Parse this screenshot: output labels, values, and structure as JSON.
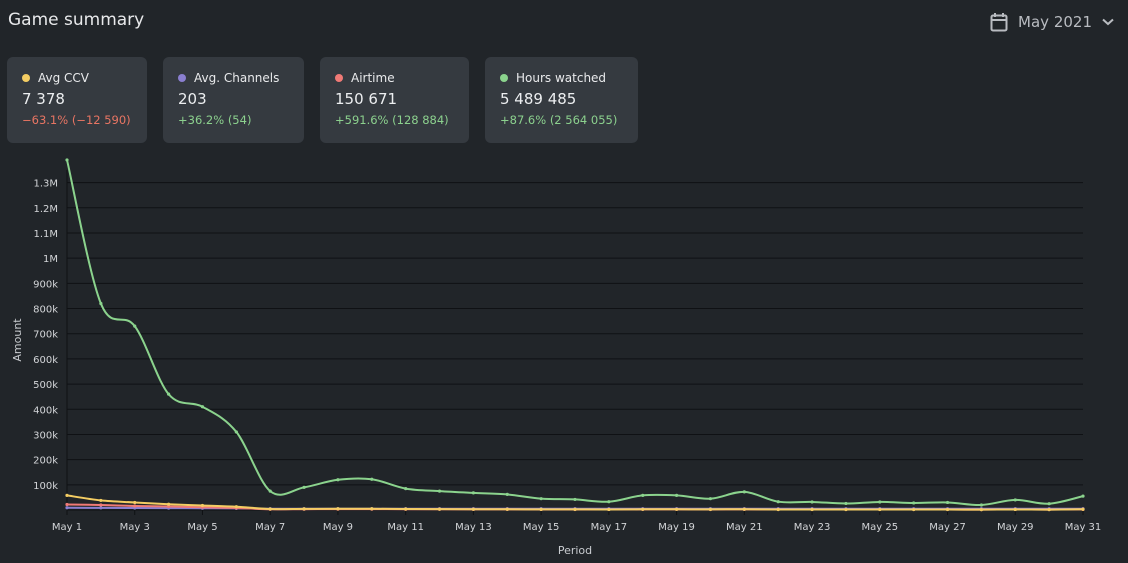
{
  "header": {
    "title": "Game summary",
    "period_label": "May 2021",
    "calendar_icon": "calendar-icon",
    "chevron_icon": "chevron-down-icon"
  },
  "cards": [
    {
      "id": "avg-ccv",
      "label": "Avg CCV",
      "value": "7 378",
      "delta": "−63.1% (−12 590)",
      "dot_color": "#f4cd63",
      "delta_color": "#e87563"
    },
    {
      "id": "avg-channels",
      "label": "Avg. Channels",
      "value": "203",
      "delta": "+36.2% (54)",
      "dot_color": "#8a7fd0",
      "delta_color": "#8cd18e"
    },
    {
      "id": "airtime",
      "label": "Airtime",
      "value": "150 671",
      "delta": "+591.6% (128 884)",
      "dot_color": "#f07a76",
      "delta_color": "#8cd18e"
    },
    {
      "id": "hours-watched",
      "label": "Hours watched",
      "value": "5 489 485",
      "delta": "+87.6% (2 564 055)",
      "dot_color": "#8bd38d",
      "delta_color": "#8cd18e"
    }
  ],
  "chart_data": {
    "type": "line",
    "xlabel": "Period",
    "ylabel": "Amount",
    "x": [
      "May 1",
      "May 2",
      "May 3",
      "May 4",
      "May 5",
      "May 6",
      "May 7",
      "May 8",
      "May 9",
      "May 10",
      "May 11",
      "May 12",
      "May 13",
      "May 14",
      "May 15",
      "May 16",
      "May 17",
      "May 18",
      "May 19",
      "May 20",
      "May 21",
      "May 22",
      "May 23",
      "May 24",
      "May 25",
      "May 26",
      "May 27",
      "May 28",
      "May 29",
      "May 30",
      "May 31"
    ],
    "x_tick_labels": [
      "May 1",
      "May 3",
      "May 5",
      "May 7",
      "May 9",
      "May 11",
      "May 13",
      "May 15",
      "May 17",
      "May 19",
      "May 21",
      "May 23",
      "May 25",
      "May 27",
      "May 29",
      "May 31"
    ],
    "x_tick_indices": [
      0,
      2,
      4,
      6,
      8,
      10,
      12,
      14,
      16,
      18,
      20,
      22,
      24,
      26,
      28,
      30
    ],
    "y_ticks": [
      100000,
      200000,
      300000,
      400000,
      500000,
      600000,
      700000,
      800000,
      900000,
      1000000,
      1100000,
      1200000,
      1300000
    ],
    "y_tick_labels": [
      "100k",
      "200k",
      "300k",
      "400k",
      "500k",
      "600k",
      "700k",
      "800k",
      "900k",
      "1M",
      "1.1M",
      "1.2M",
      "1.3M"
    ],
    "ylim": [
      0,
      1350000
    ],
    "grid": true,
    "series": [
      {
        "name": "Hours watched",
        "color": "#8bd38d",
        "values": [
          1390000,
          820000,
          730000,
          460000,
          410000,
          310000,
          75000,
          90000,
          120000,
          122000,
          85000,
          75000,
          68000,
          62000,
          45000,
          42000,
          33000,
          58000,
          58000,
          45000,
          72000,
          33000,
          32000,
          26000,
          32000,
          28000,
          30000,
          20000,
          40000,
          25000,
          55000
        ]
      },
      {
        "name": "Avg CCV",
        "color": "#f4cd63",
        "values": [
          58000,
          38000,
          30000,
          23000,
          18000,
          13000,
          4000,
          4500,
          5000,
          5000,
          4000,
          3500,
          3200,
          3000,
          2500,
          2400,
          2200,
          2800,
          2800,
          2400,
          3200,
          2000,
          2000,
          1800,
          2000,
          1800,
          1900,
          1500,
          2200,
          1700,
          3000
        ]
      },
      {
        "name": "Airtime",
        "color": "#f07a76",
        "values": [
          22000,
          20000,
          16000,
          14000,
          11000,
          8000,
          3000,
          3200,
          3500,
          3400,
          3000,
          2800,
          2600,
          2400,
          2200,
          2100,
          2000,
          2300,
          2300,
          2100,
          2500,
          1900,
          1900,
          1800,
          1900,
          1800,
          1800,
          1600,
          2000,
          1700,
          2400
        ]
      },
      {
        "name": "Avg. Channels",
        "color": "#8a7fd0",
        "values": [
          9000,
          8500,
          8000,
          7500,
          7000,
          6500,
          5000,
          5000,
          5000,
          5000,
          5000,
          5000,
          5000,
          5000,
          5000,
          5000,
          5000,
          5000,
          5000,
          5000,
          5000,
          5000,
          5000,
          5000,
          5000,
          5000,
          5000,
          5000,
          5000,
          5000,
          5000
        ]
      }
    ]
  }
}
